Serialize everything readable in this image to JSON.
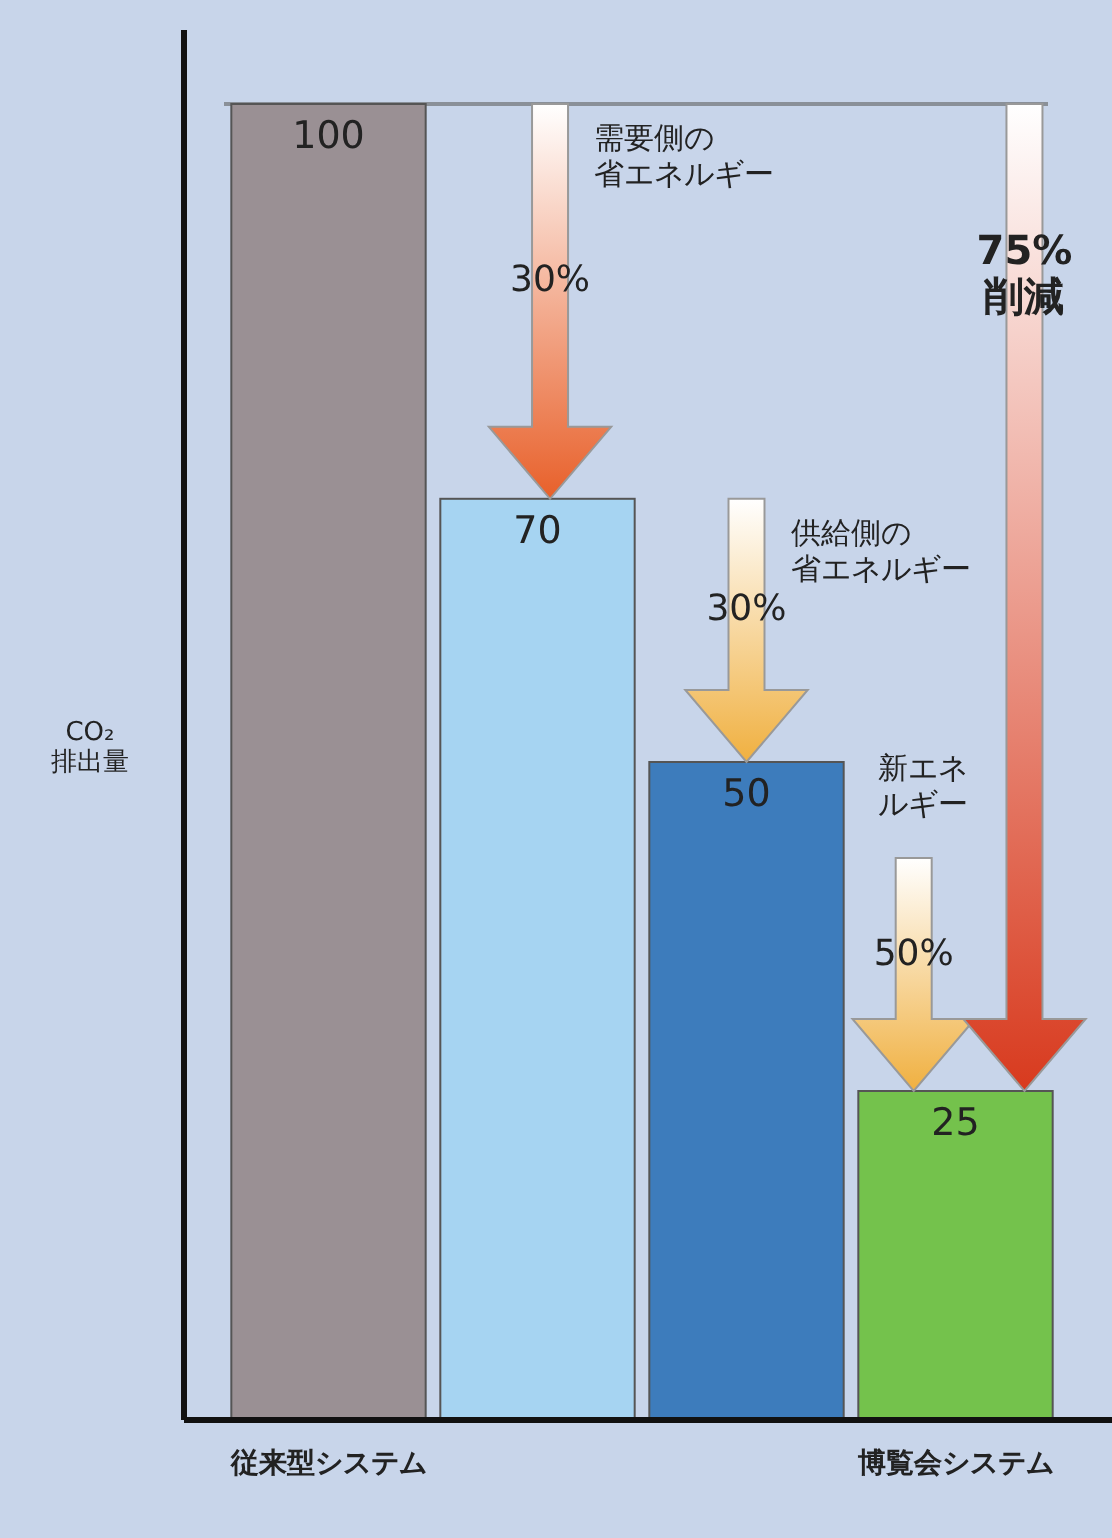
{
  "chart_data": {
    "type": "bar",
    "ylabel": "CO₂\n排出量",
    "categories": [
      "従来型システム",
      null,
      null,
      "博覧会システム"
    ],
    "values": [
      100,
      70,
      50,
      25
    ],
    "colors": [
      "#9a9094",
      "#a6d4f2",
      "#3d7cbc",
      "#74c24c"
    ],
    "data_labels": true,
    "ref_lines": [
      {
        "axis": "y",
        "value": 100,
        "color": "#8a9098"
      }
    ],
    "annotations": [
      "需要側の",
      "省エネルギー",
      "30%",
      "供給側の",
      "省エネルギー",
      "30%",
      "新エネ",
      "ルギー",
      "50%",
      "75%",
      "削減"
    ]
  }
}
